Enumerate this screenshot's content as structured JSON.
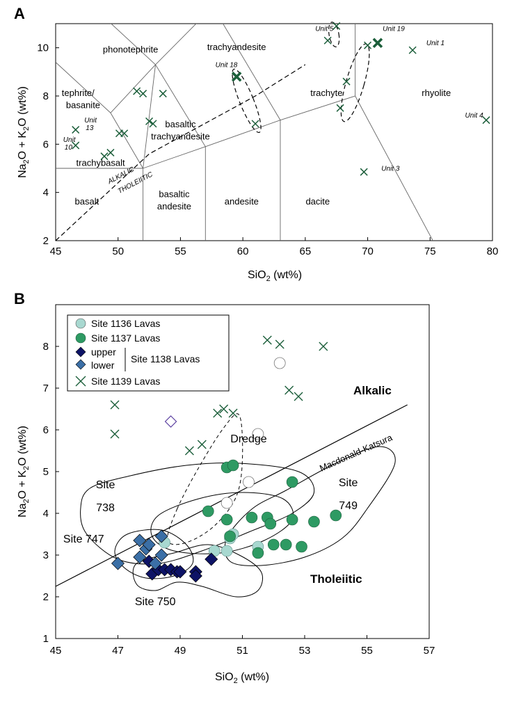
{
  "colors": {
    "green_cross": "#1b5e3a",
    "green_fill": "#2e9a63",
    "light_teal": "#a8d8d0",
    "navy": "#0d1366",
    "mid_blue": "#3b6fa6",
    "purple_outline": "#5b3fa0",
    "line": "#000000",
    "tas_line": "#666666"
  },
  "chart_data": [
    {
      "panel": "A",
      "type": "scatter",
      "xlabel_main": "SiO",
      "xlabel_sub": "2",
      "xlabel_tail": " (wt%)",
      "ylabel_main_a": "Na",
      "ylabel_sub_a": "2",
      "ylabel_mid": "O + K",
      "ylabel_sub_b": "2",
      "ylabel_tail": "O (wt%)",
      "xlim": [
        45,
        80
      ],
      "ylim": [
        2,
        11
      ],
      "xticks": [
        45,
        50,
        55,
        60,
        65,
        70,
        75,
        80
      ],
      "yticks": [
        2,
        4,
        6,
        8,
        10
      ],
      "fields": [
        {
          "label": "phonotephrite",
          "x": 51,
          "y": 9.8
        },
        {
          "label": "trachyandesite",
          "x": 59.5,
          "y": 9.9
        },
        {
          "label": "tephrite/",
          "x": 46.8,
          "y": 8.0
        },
        {
          "label": "basanite",
          "x": 47.2,
          "y": 7.5
        },
        {
          "label": "trachyte",
          "x": 66.7,
          "y": 8.0
        },
        {
          "label": "rhyolite",
          "x": 75.5,
          "y": 8.0
        },
        {
          "label": "basaltic",
          "x": 55.0,
          "y": 6.7
        },
        {
          "label": "trachyandesite",
          "x": 55.0,
          "y": 6.2
        },
        {
          "label": "trachybasalt",
          "x": 48.6,
          "y": 5.1
        },
        {
          "label": "basalt",
          "x": 47.5,
          "y": 3.5
        },
        {
          "label": "basaltic",
          "x": 54.5,
          "y": 3.8
        },
        {
          "label": "andesite",
          "x": 54.5,
          "y": 3.3
        },
        {
          "label": "andesite",
          "x": 59.9,
          "y": 3.5
        },
        {
          "label": "dacite",
          "x": 66.0,
          "y": 3.5
        }
      ],
      "unit_labels": [
        {
          "label": "Unit 5",
          "x": 65.8,
          "y": 10.7
        },
        {
          "label": "Unit 19",
          "x": 71.2,
          "y": 10.7
        },
        {
          "label": "Unit 1",
          "x": 74.7,
          "y": 10.1
        },
        {
          "label": "Unit 18",
          "x": 57.8,
          "y": 9.2
        },
        {
          "label": "Unit 13",
          "x": 47.3,
          "y": 6.9
        },
        {
          "label": "Unit 10",
          "x": 45.6,
          "y": 6.1
        },
        {
          "label": "Unit 4",
          "x": 77.8,
          "y": 7.1
        },
        {
          "label": "Unit 3",
          "x": 71.1,
          "y": 4.9
        }
      ],
      "boundary_labels": [
        "ALKALIC",
        "THOLEIITIC"
      ],
      "series": [
        {
          "marker": "x-small",
          "points": [
            [
              46.6,
              6.6
            ],
            [
              46.6,
              5.95
            ],
            [
              48.9,
              5.5
            ],
            [
              49.4,
              5.65
            ],
            [
              50.1,
              6.45
            ],
            [
              50.5,
              6.45
            ],
            [
              51.5,
              8.2
            ],
            [
              52.0,
              8.1
            ],
            [
              53.6,
              8.1
            ],
            [
              52.5,
              6.95
            ],
            [
              52.8,
              6.85
            ],
            [
              61.0,
              6.85
            ],
            [
              66.8,
              10.3
            ],
            [
              67.5,
              10.9
            ],
            [
              68.3,
              8.6
            ],
            [
              67.8,
              7.5
            ],
            [
              69.7,
              4.85
            ],
            [
              70.0,
              10.1
            ],
            [
              73.6,
              9.9
            ],
            [
              79.5,
              7.0
            ]
          ]
        },
        {
          "marker": "x-bold",
          "points": [
            [
              59.5,
              8.8
            ],
            [
              70.8,
              10.2
            ]
          ]
        }
      ]
    },
    {
      "panel": "B",
      "type": "scatter",
      "xlabel_main": "SiO",
      "xlabel_sub": "2",
      "xlabel_tail": " (wt%)",
      "ylabel_main_a": "Na",
      "ylabel_sub_a": "2",
      "ylabel_mid": "O + K",
      "ylabel_sub_b": "2",
      "ylabel_tail": "O (wt%)",
      "xlim": [
        45,
        57
      ],
      "ylim": [
        1,
        9
      ],
      "xticks": [
        45,
        47,
        49,
        51,
        53,
        55,
        57
      ],
      "yticks": [
        1,
        2,
        3,
        4,
        5,
        6,
        7,
        8
      ],
      "legend": {
        "placement": "top-left",
        "site1136": "Site 1136 Lavas",
        "site1137": "Site 1137 Lavas",
        "upper": "upper",
        "lower": "lower",
        "site1138": "Site 1138 Lavas",
        "site1139": "Site 1139 Lavas"
      },
      "region_labels": [
        {
          "label": "Site",
          "x": 46.6,
          "y": 4.6
        },
        {
          "label": "738",
          "x": 46.6,
          "y": 4.05
        },
        {
          "label": "Site 747",
          "x": 45.9,
          "y": 3.3
        },
        {
          "label": "Dredge",
          "x": 51.2,
          "y": 5.7
        },
        {
          "label": "Site",
          "x": 54.4,
          "y": 4.65
        },
        {
          "label": "749",
          "x": 54.4,
          "y": 4.1
        },
        {
          "label": "Site 750",
          "x": 48.2,
          "y": 1.8
        }
      ],
      "alkalic_label": "Alkalic",
      "tholeiitic_label": "Tholeiitic",
      "line_label": "Macdonald-Katsura",
      "series": [
        {
          "name": "Site 1136 Lavas",
          "marker": "circle-lightteal",
          "points": [
            [
              48.5,
              3.3
            ],
            [
              50.1,
              3.1
            ],
            [
              50.5,
              3.1
            ],
            [
              50.6,
              3.4
            ],
            [
              50.7,
              3.5
            ],
            [
              51.5,
              3.2
            ]
          ]
        },
        {
          "name": "Site 1137 Lavas",
          "marker": "circle-green",
          "points": [
            [
              50.5,
              5.1
            ],
            [
              50.7,
              5.15
            ],
            [
              52.6,
              4.75
            ],
            [
              49.9,
              4.05
            ],
            [
              50.5,
              3.85
            ],
            [
              51.3,
              3.9
            ],
            [
              51.8,
              3.9
            ],
            [
              51.9,
              3.75
            ],
            [
              52.6,
              3.85
            ],
            [
              53.3,
              3.8
            ],
            [
              54.0,
              3.95
            ],
            [
              50.6,
              3.45
            ],
            [
              51.5,
              3.05
            ],
            [
              52.0,
              3.25
            ],
            [
              52.4,
              3.25
            ],
            [
              52.9,
              3.2
            ]
          ]
        },
        {
          "name": "upper",
          "marker": "diamond-navy",
          "points": [
            [
              48.0,
              2.85
            ],
            [
              48.1,
              2.55
            ],
            [
              48.3,
              2.65
            ],
            [
              48.5,
              2.65
            ],
            [
              48.7,
              2.65
            ],
            [
              48.9,
              2.6
            ],
            [
              49.0,
              2.6
            ],
            [
              49.5,
              2.6
            ],
            [
              49.5,
              2.5
            ],
            [
              50.0,
              2.9
            ]
          ]
        },
        {
          "name": "lower",
          "marker": "diamond-blue",
          "points": [
            [
              47.0,
              2.8
            ],
            [
              47.7,
              3.35
            ],
            [
              47.7,
              2.95
            ],
            [
              47.9,
              3.15
            ],
            [
              48.0,
              3.25
            ],
            [
              48.2,
              2.8
            ],
            [
              48.4,
              3.0
            ],
            [
              48.4,
              3.45
            ]
          ]
        },
        {
          "name": "Site 1139 Lavas",
          "marker": "x-green",
          "points": [
            [
              46.9,
              6.6
            ],
            [
              46.9,
              5.9
            ],
            [
              49.3,
              5.5
            ],
            [
              49.7,
              5.65
            ],
            [
              50.2,
              6.4
            ],
            [
              50.4,
              6.5
            ],
            [
              50.7,
              6.4
            ],
            [
              51.8,
              8.15
            ],
            [
              52.2,
              8.05
            ],
            [
              53.6,
              8.0
            ],
            [
              52.5,
              6.95
            ],
            [
              52.8,
              6.8
            ]
          ]
        },
        {
          "marker": "circle-open",
          "points": [
            [
              52.2,
              7.6
            ],
            [
              51.5,
              5.9
            ],
            [
              51.2,
              4.75
            ],
            [
              50.5,
              4.25
            ]
          ]
        },
        {
          "marker": "diamond-open",
          "points": [
            [
              48.7,
              6.2
            ]
          ]
        }
      ]
    }
  ]
}
